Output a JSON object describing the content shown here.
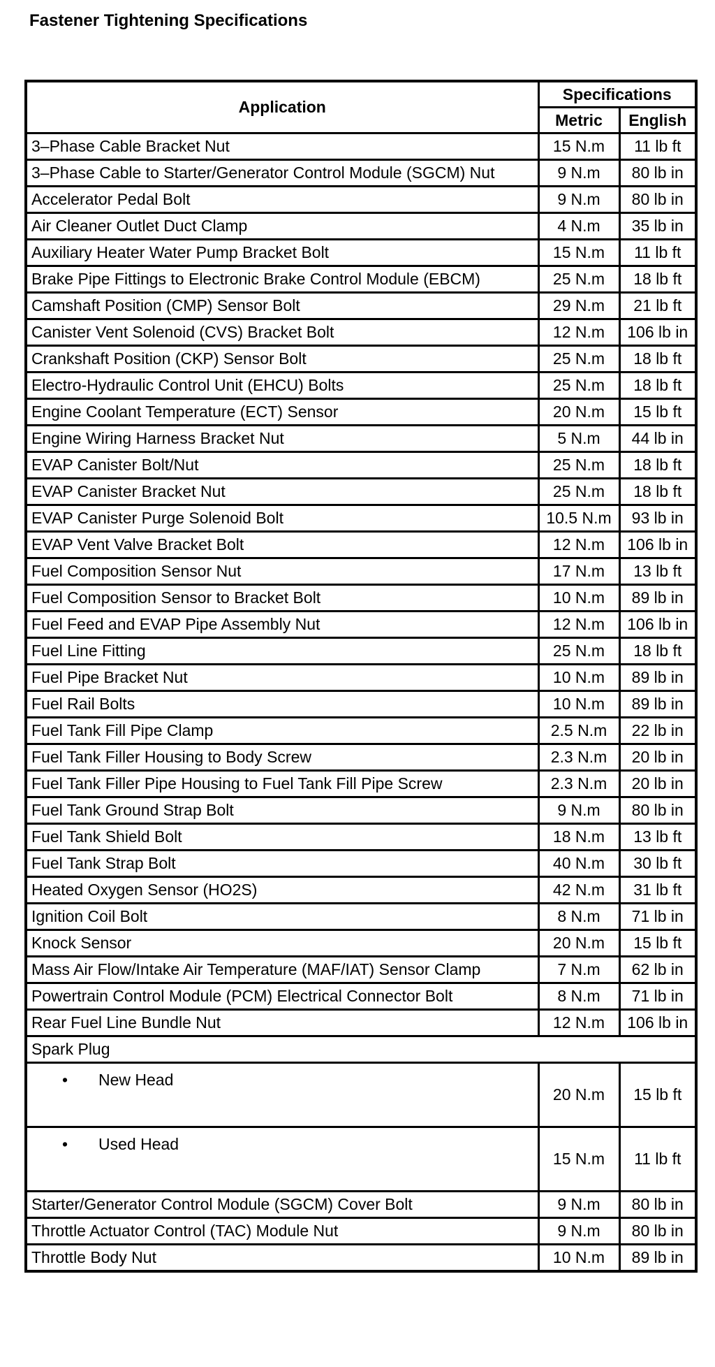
{
  "title": "Fastener Tightening Specifications",
  "headers": {
    "application": "Application",
    "specifications": "Specifications",
    "metric": "Metric",
    "english": "English"
  },
  "rows": [
    {
      "app": "3–Phase Cable Bracket Nut",
      "metric": "15 N.m",
      "english": "11 lb ft"
    },
    {
      "app": "3–Phase Cable to Starter/Generator Control Module (SGCM) Nut",
      "metric": "9 N.m",
      "english": "80 lb in"
    },
    {
      "app": "Accelerator Pedal Bolt",
      "metric": "9 N.m",
      "english": "80 lb in"
    },
    {
      "app": "Air Cleaner Outlet Duct Clamp",
      "metric": "4 N.m",
      "english": "35 lb in"
    },
    {
      "app": "Auxiliary Heater Water Pump Bracket Bolt",
      "metric": "15 N.m",
      "english": "11 lb ft"
    },
    {
      "app": "Brake Pipe Fittings to Electronic Brake Control Module (EBCM)",
      "metric": "25 N.m",
      "english": "18 lb ft"
    },
    {
      "app": "Camshaft Position (CMP) Sensor Bolt",
      "metric": "29 N.m",
      "english": "21 lb ft"
    },
    {
      "app": "Canister Vent Solenoid (CVS) Bracket Bolt",
      "metric": "12 N.m",
      "english": "106 lb in"
    },
    {
      "app": "Crankshaft Position (CKP) Sensor Bolt",
      "metric": "25 N.m",
      "english": "18 lb ft"
    },
    {
      "app": "Electro-Hydraulic Control Unit (EHCU) Bolts",
      "metric": "25 N.m",
      "english": "18 lb ft"
    },
    {
      "app": "Engine Coolant Temperature (ECT) Sensor",
      "metric": "20 N.m",
      "english": "15 lb ft"
    },
    {
      "app": "Engine Wiring Harness Bracket Nut",
      "metric": "5 N.m",
      "english": "44 lb in"
    },
    {
      "app": "EVAP Canister Bolt/Nut",
      "metric": "25 N.m",
      "english": "18 lb ft"
    },
    {
      "app": "EVAP Canister Bracket Nut",
      "metric": "25 N.m",
      "english": "18 lb ft"
    },
    {
      "app": "EVAP Canister Purge Solenoid Bolt",
      "metric": "10.5 N.m",
      "english": "93 lb in"
    },
    {
      "app": "EVAP Vent Valve Bracket Bolt",
      "metric": "12 N.m",
      "english": "106 lb in"
    },
    {
      "app": "Fuel Composition Sensor Nut",
      "metric": "17 N.m",
      "english": "13 lb ft"
    },
    {
      "app": "Fuel Composition Sensor to Bracket Bolt",
      "metric": "10 N.m",
      "english": "89 lb in"
    },
    {
      "app": "Fuel Feed and EVAP Pipe Assembly Nut",
      "metric": "12 N.m",
      "english": "106 lb in"
    },
    {
      "app": "Fuel Line Fitting",
      "metric": "25 N.m",
      "english": "18 lb ft"
    },
    {
      "app": "Fuel Pipe Bracket Nut",
      "metric": "10 N.m",
      "english": "89 lb in"
    },
    {
      "app": "Fuel Rail Bolts",
      "metric": "10 N.m",
      "english": "89 lb in"
    },
    {
      "app": "Fuel Tank Fill Pipe Clamp",
      "metric": "2.5 N.m",
      "english": "22 lb in"
    },
    {
      "app": "Fuel Tank Filler Housing to Body Screw",
      "metric": "2.3 N.m",
      "english": "20 lb in"
    },
    {
      "app": "Fuel Tank Filler Pipe Housing to Fuel Tank Fill Pipe Screw",
      "metric": "2.3 N.m",
      "english": "20 lb in"
    },
    {
      "app": "Fuel Tank Ground Strap Bolt",
      "metric": "9 N.m",
      "english": "80 lb in"
    },
    {
      "app": "Fuel Tank Shield Bolt",
      "metric": "18 N.m",
      "english": "13 lb ft"
    },
    {
      "app": "Fuel Tank Strap Bolt",
      "metric": "40 N.m",
      "english": "30 lb ft"
    },
    {
      "app": "Heated Oxygen Sensor (HO2S)",
      "metric": "42 N.m",
      "english": "31 lb ft"
    },
    {
      "app": "Ignition Coil Bolt",
      "metric": "8 N.m",
      "english": "71 lb in"
    },
    {
      "app": "Knock Sensor",
      "metric": "20 N.m",
      "english": "15 lb ft"
    },
    {
      "app": "Mass Air Flow/Intake Air Temperature (MAF/IAT) Sensor Clamp",
      "metric": "7 N.m",
      "english": "62 lb in"
    },
    {
      "app": "Powertrain Control Module (PCM) Electrical Connector Bolt",
      "metric": "8 N.m",
      "english": "71 lb in"
    },
    {
      "app": "Rear Fuel Line Bundle Nut",
      "metric": "12 N.m",
      "english": "106 lb in"
    }
  ],
  "spark_plug": {
    "label": "Spark Plug",
    "bullet": "•",
    "items": [
      {
        "app": "New Head",
        "metric": "20 N.m",
        "english": "15 lb ft"
      },
      {
        "app": "Used Head",
        "metric": "15 N.m",
        "english": "11 lb ft"
      }
    ]
  },
  "rows_after": [
    {
      "app": "Starter/Generator Control Module (SGCM) Cover Bolt",
      "metric": "9 N.m",
      "english": "80 lb in"
    },
    {
      "app": "Throttle Actuator Control (TAC) Module Nut",
      "metric": "9 N.m",
      "english": "80 lb in"
    },
    {
      "app": "Throttle Body Nut",
      "metric": "10 N.m",
      "english": "89 lb in"
    }
  ]
}
